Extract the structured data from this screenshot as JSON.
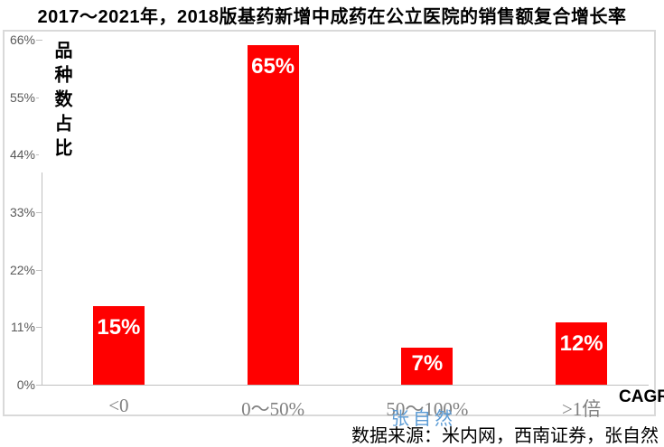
{
  "title": "2017～2021年，2018版基药新增中成药在公立医院的销售额复合增长率",
  "y_axis": {
    "title_vertical": "品种数占比",
    "ticks": [
      "0%",
      "11%",
      "22%",
      "33%",
      "44%",
      "55%",
      "66%"
    ]
  },
  "x_axis": {
    "title": "CAGR"
  },
  "watermark": {
    "text": "张自然",
    "color": "#5B9BD5"
  },
  "source": "数据来源：米内网，西南证券，张自然",
  "chart_data": {
    "type": "bar",
    "title": "2017～2021年，2018版基药新增中成药在公立医院的销售额复合增长率",
    "categories": [
      "<0",
      "0～50%",
      "50～100%",
      ">1倍"
    ],
    "values": [
      15,
      65,
      7,
      12
    ],
    "value_labels": [
      "15%",
      "65%",
      "7%",
      "12%"
    ],
    "xlabel": "CAGR",
    "ylabel": "品种数占比",
    "ylim": [
      0,
      66
    ],
    "ytick_step": 11,
    "bar_color": "#FF0000",
    "value_label_color": "#FFFFFF",
    "grid": false,
    "legend": false
  }
}
